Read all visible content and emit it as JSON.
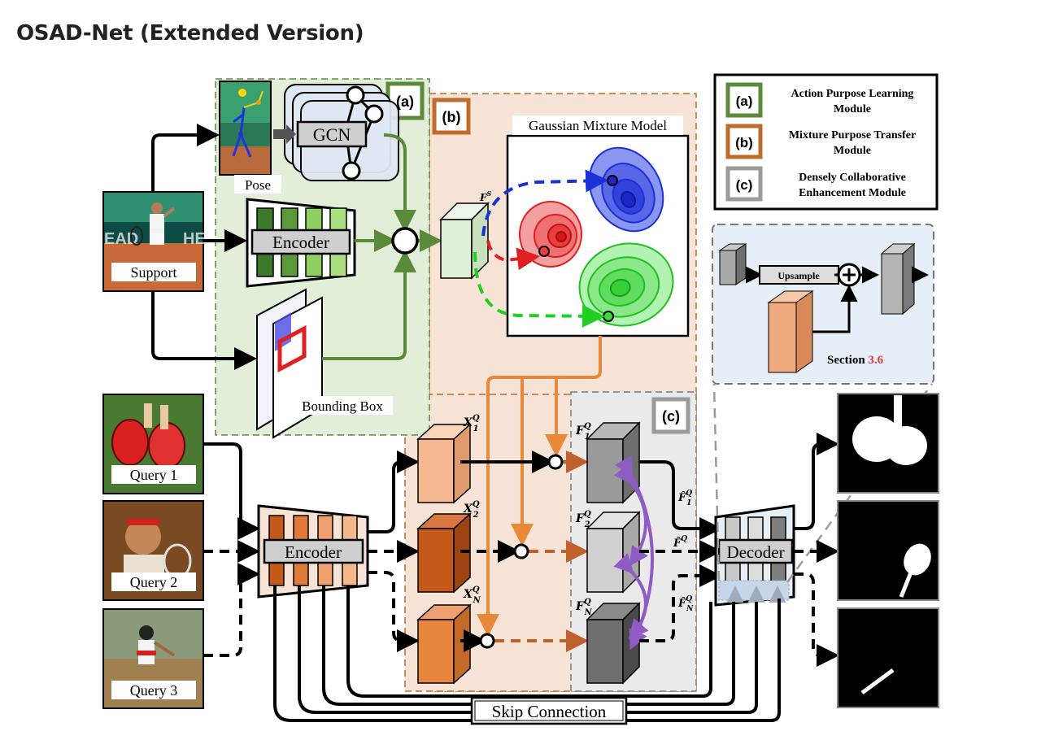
{
  "page": {
    "title": "OSAD-Net (Extended Version)"
  },
  "diagram": {
    "modules": {
      "a_tag": "(a)",
      "b_tag": "(b)",
      "c_tag": "(c)"
    },
    "legend": [
      {
        "tag": "(a)",
        "line1": "Action Purpose Learning",
        "line2": "Module",
        "color": "#5a8a3a"
      },
      {
        "tag": "(b)",
        "line1": "Mixture Purpose Transfer",
        "line2": "Module",
        "color": "#c06a2c"
      },
      {
        "tag": "(c)",
        "line1": "Densely Collaborative",
        "line2": "Enhancement Module",
        "color": "#9a9a9a"
      }
    ],
    "labels": {
      "pose": "Pose",
      "gcn": "GCN",
      "support": "Support",
      "encoder_support": "Encoder",
      "bounding_box": "Bounding Box",
      "gmm_title": "Gaussian Mixture Model",
      "fs": "F",
      "fs_sup": "S",
      "query1": "Query 1",
      "query2": "Query 2",
      "query3": "Query 3",
      "encoder_query": "Encoder",
      "decoder": "Decoder",
      "skip_connection": "Skip Connection",
      "upsample": "Upsample",
      "section_prefix": "Section ",
      "section_num": "3.6"
    },
    "features": {
      "x1": "X",
      "x1_sub": "1",
      "x1_sup": "Q",
      "x2": "X",
      "x2_sub": "2",
      "x2_sup": "Q",
      "xn": "X",
      "xn_sub": "N",
      "xn_sup": "Q",
      "f1": "F",
      "f1_sub": "1",
      "f1_sup": "Q",
      "f2": "F",
      "f2_sub": "2",
      "f2_sup": "Q",
      "fn": "F",
      "fn_sub": "N",
      "fn_sup": "Q",
      "fh1": "F̂",
      "fh1_sub": "1",
      "fh1_sup": "Q",
      "fh2": "F̂",
      "fh2_sub": "",
      "fh2_sup": "Q",
      "fhn": "F̂",
      "fhn_sub": "N",
      "fhn_sup": "Q"
    },
    "colors": {
      "green_module": "#e2eed8",
      "orange_module": "#f8e4d6",
      "gray_module": "#eaeaea",
      "section_box": "#e6eef7",
      "orange_arrow": "#e8893a",
      "purple_arrow": "#8e5cc2",
      "green_arrow": "#5a8a3a",
      "section_num": "#e03a3a"
    }
  }
}
